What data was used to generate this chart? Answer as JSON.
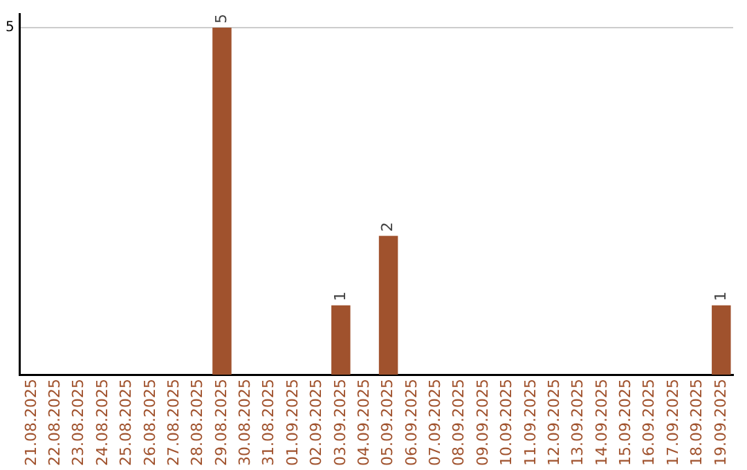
{
  "chart_data": {
    "type": "bar",
    "categories": [
      "21.08.2025",
      "22.08.2025",
      "23.08.2025",
      "24.08.2025",
      "25.08.2025",
      "26.08.2025",
      "27.08.2025",
      "28.08.2025",
      "29.08.2025",
      "30.08.2025",
      "31.08.2025",
      "01.09.2025",
      "02.09.2025",
      "03.09.2025",
      "04.09.2025",
      "05.09.2025",
      "06.09.2025",
      "07.09.2025",
      "08.09.2025",
      "09.09.2025",
      "10.09.2025",
      "11.09.2025",
      "12.09.2025",
      "13.09.2025",
      "14.09.2025",
      "15.09.2025",
      "16.09.2025",
      "17.09.2025",
      "18.09.2025",
      "19.09.2025"
    ],
    "values": [
      0,
      0,
      0,
      0,
      0,
      0,
      0,
      0,
      5,
      0,
      0,
      0,
      0,
      1,
      0,
      2,
      0,
      0,
      0,
      0,
      0,
      0,
      0,
      0,
      0,
      0,
      0,
      0,
      0,
      1
    ],
    "value_labels": [
      null,
      null,
      null,
      null,
      null,
      null,
      null,
      null,
      "5",
      null,
      null,
      null,
      null,
      "1",
      null,
      "2",
      null,
      null,
      null,
      null,
      null,
      null,
      null,
      null,
      null,
      null,
      null,
      null,
      null,
      "1"
    ],
    "color": "#a0522d",
    "ylim": [
      0,
      5.2
    ],
    "yticks": [
      5
    ],
    "grid": "y",
    "legend": false
  }
}
